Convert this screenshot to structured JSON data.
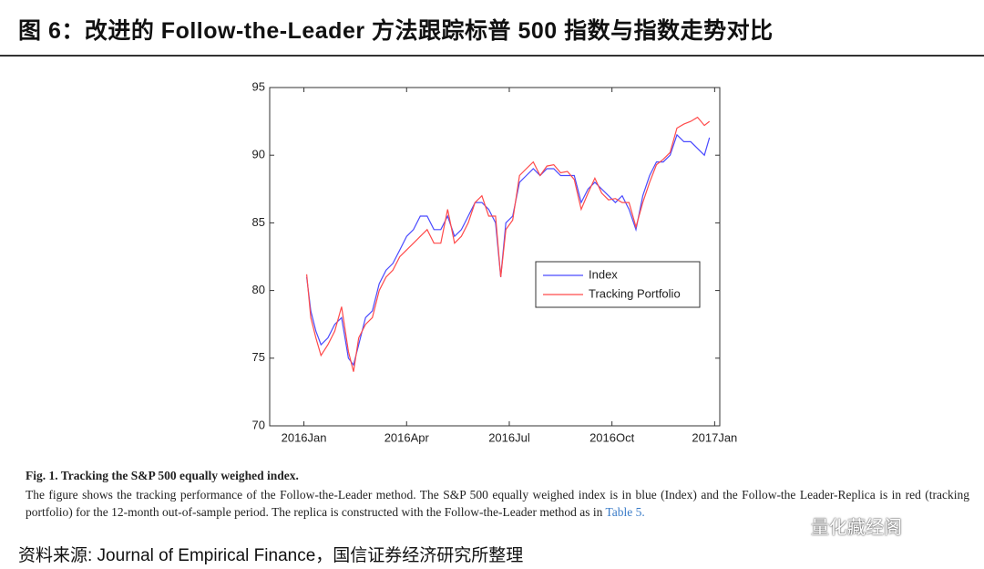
{
  "title": "图 6：改进的 Follow-the-Leader 方法跟踪标普 500 指数与指数走势对比",
  "chart_data": {
    "type": "line",
    "x": [
      0.08,
      0.2,
      0.35,
      0.5,
      0.7,
      0.9,
      1.1,
      1.3,
      1.45,
      1.6,
      1.8,
      2.0,
      2.2,
      2.4,
      2.6,
      2.8,
      3.0,
      3.2,
      3.4,
      3.6,
      3.8,
      4.0,
      4.2,
      4.4,
      4.6,
      4.8,
      5.0,
      5.2,
      5.4,
      5.6,
      5.75,
      5.9,
      6.1,
      6.3,
      6.5,
      6.7,
      6.9,
      7.1,
      7.3,
      7.5,
      7.7,
      7.9,
      8.1,
      8.3,
      8.5,
      8.7,
      8.9,
      9.1,
      9.3,
      9.5,
      9.7,
      9.9,
      10.1,
      10.3,
      10.5,
      10.7,
      10.9,
      11.1,
      11.3,
      11.5,
      11.7,
      11.85
    ],
    "series": [
      {
        "name": "Index",
        "color": "#4a4aff",
        "values": [
          81,
          78.5,
          77,
          76,
          76.5,
          77.5,
          78,
          75,
          74.5,
          76,
          78,
          78.5,
          80.5,
          81.5,
          82,
          83,
          84,
          84.5,
          85.5,
          85.5,
          84.5,
          84.5,
          85.5,
          84,
          84.5,
          85.5,
          86.5,
          86.5,
          86,
          85,
          81,
          85,
          85.5,
          88,
          88.5,
          89,
          88.5,
          89,
          89,
          88.5,
          88.5,
          88.5,
          86.5,
          87.5,
          88,
          87.5,
          87,
          86.5,
          87,
          86,
          84.5,
          87,
          88.5,
          89.5,
          89.5,
          90,
          91.5,
          91,
          91,
          90.5,
          90,
          91.3
        ]
      },
      {
        "name": "Tracking Portfolio",
        "color": "#ff4a4a",
        "values": [
          81.2,
          78,
          76.5,
          75.2,
          76,
          77,
          78.8,
          75.5,
          74,
          76.5,
          77.5,
          78,
          80,
          81,
          81.5,
          82.5,
          83,
          83.5,
          84,
          84.5,
          83.5,
          83.5,
          86,
          83.5,
          84,
          85,
          86.5,
          87,
          85.5,
          85.5,
          81,
          84.5,
          85.2,
          88.5,
          89,
          89.5,
          88.5,
          89.2,
          89.3,
          88.7,
          88.8,
          88.2,
          86,
          87.2,
          88.3,
          87.2,
          86.7,
          86.8,
          86.5,
          86.5,
          84.7,
          86.5,
          88,
          89.3,
          89.7,
          90.2,
          92,
          92.3,
          92.5,
          92.8,
          92.2,
          92.5
        ]
      }
    ],
    "xlim": [
      -1,
      12.15
    ],
    "xticks": [
      {
        "value": 0,
        "label": "2016Jan"
      },
      {
        "value": 3,
        "label": "2016Apr"
      },
      {
        "value": 6,
        "label": "2016Jul"
      },
      {
        "value": 9,
        "label": "2016Oct"
      },
      {
        "value": 12,
        "label": "2017Jan"
      }
    ],
    "ylim": [
      70,
      95
    ],
    "yticks": [
      70,
      75,
      80,
      85,
      90,
      95
    ],
    "legend": "right"
  },
  "caption": {
    "title": "Fig. 1. Tracking the S&P 500 equally weighed index.",
    "body": "The figure shows the tracking performance of the Follow-the-Leader method. The S&P 500 equally weighed index is in blue (Index) and the Follow-the Leader-Replica is in red (tracking portfolio) for the 12-month out-of-sample period. The replica is constructed with the Follow-the-Leader method as in",
    "link": "Table 5."
  },
  "source": "资料来源: Journal of Empirical Finance，国信证券经济研究所整理",
  "watermark": "量化藏经阁"
}
